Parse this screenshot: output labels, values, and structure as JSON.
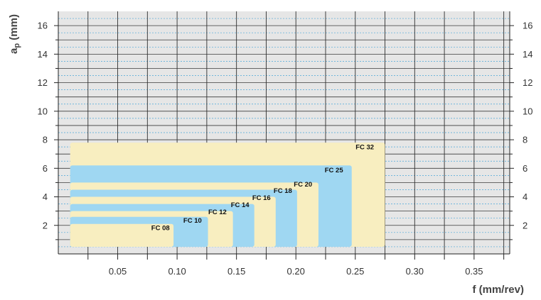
{
  "chart_data": {
    "type": "area",
    "title": "",
    "xlabel": "f (mm/rev)",
    "ylabel_main": "a",
    "ylabel_sub": "p",
    "ylabel_unit": " (mm)",
    "xlim": [
      0.0,
      0.38
    ],
    "ylim": [
      0,
      17
    ],
    "x_ticks": [
      0.05,
      0.1,
      0.15,
      0.2,
      0.25,
      0.3,
      0.35
    ],
    "x_tick_labels": [
      "0.05",
      "0.10",
      "0.15",
      "0.20",
      "0.25",
      "0.30",
      "0.35"
    ],
    "x_grid": [
      0.025,
      0.05,
      0.075,
      0.1,
      0.125,
      0.15,
      0.175,
      0.2,
      0.225,
      0.25,
      0.275,
      0.3,
      0.325,
      0.35,
      0.375
    ],
    "y_ticks": [
      2,
      4,
      6,
      8,
      10,
      12,
      14,
      16
    ],
    "y_tick_labels": [
      "2",
      "4",
      "6",
      "8",
      "10",
      "12",
      "14",
      "16"
    ],
    "y_minor_ticks": [
      1,
      3,
      5,
      7,
      9,
      11,
      13,
      15
    ],
    "grid": true,
    "plot_background": "#e6e6e6",
    "series": [
      {
        "name": "FC 32",
        "f_max": 0.275,
        "ap_max": 7.8,
        "color": "#f8eec0"
      },
      {
        "name": "FC 25",
        "f_max": 0.247,
        "ap_max": 6.2,
        "color": "#9fd7f2"
      },
      {
        "name": "FC 20",
        "f_max": 0.219,
        "ap_max": 5.0,
        "color": "#f8eec0"
      },
      {
        "name": "FC 18",
        "f_max": 0.201,
        "ap_max": 4.5,
        "color": "#9fd7f2"
      },
      {
        "name": "FC 16",
        "f_max": 0.183,
        "ap_max": 4.0,
        "color": "#f8eec0"
      },
      {
        "name": "FC 14",
        "f_max": 0.165,
        "ap_max": 3.5,
        "color": "#9fd7f2"
      },
      {
        "name": "FC 12",
        "f_max": 0.147,
        "ap_max": 3.0,
        "color": "#f8eec0"
      },
      {
        "name": "FC 10",
        "f_max": 0.126,
        "ap_max": 2.6,
        "color": "#9fd7f2"
      },
      {
        "name": "FC 08",
        "f_max": 0.097,
        "ap_max": 2.1,
        "color": "#f8eec0"
      }
    ],
    "f_min": 0.01,
    "ap_min": 0.5,
    "label_positions": [
      {
        "name": "FC 32",
        "f": 0.258,
        "ap": 7.5
      },
      {
        "name": "FC 25",
        "f": 0.232,
        "ap": 5.9
      },
      {
        "name": "FC 20",
        "f": 0.206,
        "ap": 4.9
      },
      {
        "name": "FC 18",
        "f": 0.189,
        "ap": 4.45
      },
      {
        "name": "FC 16",
        "f": 0.171,
        "ap": 3.95
      },
      {
        "name": "FC 14",
        "f": 0.153,
        "ap": 3.45
      },
      {
        "name": "FC 12",
        "f": 0.134,
        "ap": 2.95
      },
      {
        "name": "FC 10",
        "f": 0.113,
        "ap": 2.35
      },
      {
        "name": "FC 08",
        "f": 0.086,
        "ap": 1.85
      }
    ]
  }
}
